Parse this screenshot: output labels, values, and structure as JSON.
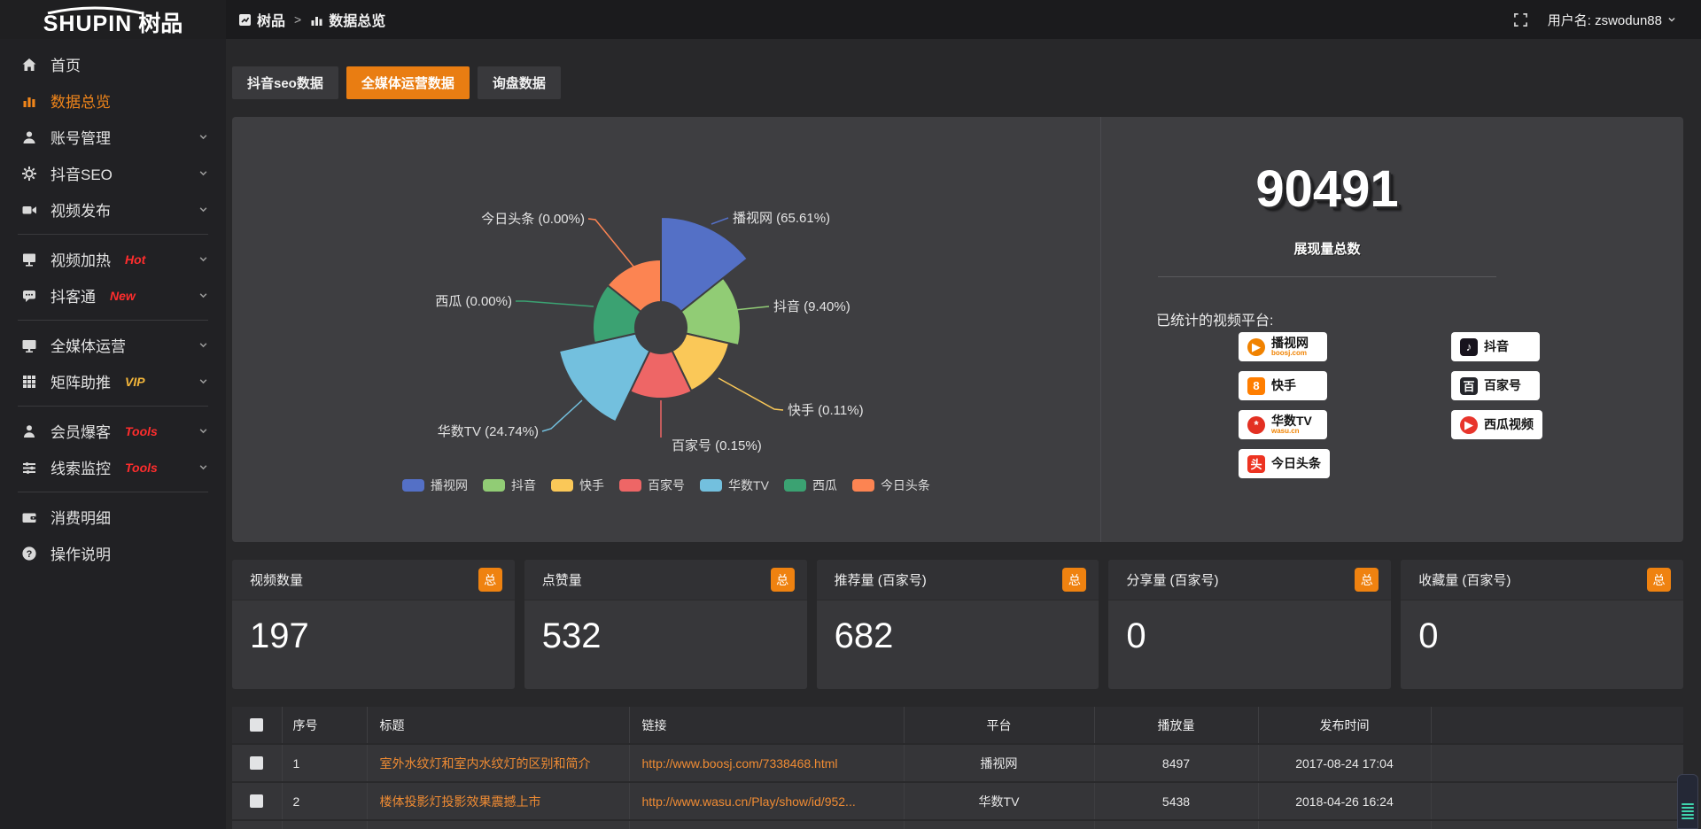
{
  "topbar": {
    "logo": {
      "text": "SHUPIN",
      "suffix": "树品"
    },
    "breadcrumb": {
      "root": "树品",
      "separator": ">",
      "current": "数据总览"
    },
    "username": "用户名: zswodun88"
  },
  "sidebar": {
    "items": [
      {
        "label": "首页",
        "icon": "home-icon",
        "active": false,
        "chevron": false,
        "badge": "",
        "badge_color": "",
        "divider_after": false
      },
      {
        "label": "数据总览",
        "icon": "bar-chart-icon",
        "active": true,
        "chevron": false,
        "badge": "",
        "badge_color": "",
        "divider_after": false
      },
      {
        "label": "账号管理",
        "icon": "user-icon",
        "active": false,
        "chevron": true,
        "badge": "",
        "badge_color": "",
        "divider_after": false
      },
      {
        "label": "抖音SEO",
        "icon": "gear-icon",
        "active": false,
        "chevron": true,
        "badge": "",
        "badge_color": "",
        "divider_after": false
      },
      {
        "label": "视频发布",
        "icon": "video-camera-icon",
        "active": false,
        "chevron": true,
        "badge": "",
        "badge_color": "",
        "divider_after": true
      },
      {
        "label": "视频加热",
        "icon": "screen-icon",
        "active": false,
        "chevron": true,
        "badge": "Hot",
        "badge_color": "#ff2d2d",
        "divider_after": false
      },
      {
        "label": "抖客通",
        "icon": "chat-icon",
        "active": false,
        "chevron": true,
        "badge": "New",
        "badge_color": "#ff2d2d",
        "divider_after": true
      },
      {
        "label": "全媒体运营",
        "icon": "monitor-icon",
        "active": false,
        "chevron": true,
        "badge": "",
        "badge_color": "",
        "divider_after": false
      },
      {
        "label": "矩阵助推",
        "icon": "grid-icon",
        "active": false,
        "chevron": true,
        "badge": "VIP",
        "badge_color": "#f3b63a",
        "divider_after": true
      },
      {
        "label": "会员爆客",
        "icon": "member-icon",
        "active": false,
        "chevron": true,
        "badge": "Tools",
        "badge_color": "#ff2d2d",
        "divider_after": false
      },
      {
        "label": "线索监控",
        "icon": "sliders-icon",
        "active": false,
        "chevron": true,
        "badge": "Tools",
        "badge_color": "#ff2d2d",
        "divider_after": true
      },
      {
        "label": "消费明细",
        "icon": "wallet-icon",
        "active": false,
        "chevron": false,
        "badge": "",
        "badge_color": "",
        "divider_after": false
      },
      {
        "label": "操作说明",
        "icon": "question-icon",
        "active": false,
        "chevron": false,
        "badge": "",
        "badge_color": "",
        "divider_after": false
      }
    ]
  },
  "tabs": [
    {
      "label": "抖音seo数据",
      "active": false
    },
    {
      "label": "全媒体运营数据",
      "active": true
    },
    {
      "label": "询盘数据",
      "active": false
    }
  ],
  "chart_data": {
    "type": "pie",
    "rose": true,
    "title": "",
    "legend_position": "bottom",
    "items": [
      {
        "name": "播视网",
        "value": 65.61,
        "label": "播视网 (65.61%)",
        "color": "#5470c6"
      },
      {
        "name": "抖音",
        "value": 9.4,
        "label": "抖音 (9.40%)",
        "color": "#91cc75"
      },
      {
        "name": "快手",
        "value": 0.11,
        "label": "快手 (0.11%)",
        "color": "#fac858"
      },
      {
        "name": "百家号",
        "value": 0.15,
        "label": "百家号 (0.15%)",
        "color": "#ee6666"
      },
      {
        "name": "华数TV",
        "value": 24.74,
        "label": "华数TV (24.74%)",
        "color": "#73c0de"
      },
      {
        "name": "西瓜",
        "value": 0.0,
        "label": "西瓜 (0.00%)",
        "color": "#3ba272"
      },
      {
        "name": "今日头条",
        "value": 0.0,
        "label": "今日头条 (0.00%)",
        "color": "#fc8452"
      }
    ]
  },
  "summary": {
    "total_value": "90491",
    "total_label": "展现量总数",
    "platforms_label": "已统计的视频平台:",
    "platforms": [
      {
        "name": "播视网",
        "sub": "boosj.com",
        "logo": "boosj-logo",
        "logo_color": "#f08200"
      },
      {
        "name": "抖音",
        "sub": "",
        "logo": "douyin-logo",
        "logo_color": "#17131d"
      },
      {
        "name": "快手",
        "sub": "",
        "logo": "kuaishou-logo",
        "logo_color": "#ff7e00"
      },
      {
        "name": "百家号",
        "sub": "",
        "logo": "baijiahao-logo",
        "logo_color": "#24252b"
      },
      {
        "name": "华数TV",
        "sub": "wasu.cn",
        "logo": "wasu-logo",
        "logo_color": "#e33022"
      },
      {
        "name": "西瓜视频",
        "sub": "",
        "logo": "xigua-logo",
        "logo_color": "#e8352c"
      },
      {
        "name": "今日头条",
        "sub": "",
        "logo": "toutiao-logo",
        "logo_color": "#ed3321"
      }
    ]
  },
  "stat_cards": [
    {
      "title": "视频数量",
      "badge": "总",
      "value": "197"
    },
    {
      "title": "点赞量",
      "badge": "总",
      "value": "532"
    },
    {
      "title": "推荐量 (百家号)",
      "badge": "总",
      "value": "682"
    },
    {
      "title": "分享量 (百家号)",
      "badge": "总",
      "value": "0"
    },
    {
      "title": "收藏量 (百家号)",
      "badge": "总",
      "value": "0"
    }
  ],
  "table": {
    "headers": [
      "序号",
      "标题",
      "链接",
      "平台",
      "播放量",
      "发布时间"
    ],
    "rows": [
      {
        "no": "1",
        "title": "室外水纹灯和室内水纹灯的区别和简介",
        "link": "http://www.boosj.com/7338468.html",
        "platform": "播视网",
        "plays": "8497",
        "time": "2017-08-24 17:04"
      },
      {
        "no": "2",
        "title": "楼体投影灯投影效果震撼上市",
        "link": "http://www.wasu.cn/Play/show/id/952...",
        "platform": "华数TV",
        "plays": "5438",
        "time": "2018-04-26 16:24"
      }
    ]
  },
  "colors": {
    "accent": "#ed7d11",
    "link": "#ef8b33"
  }
}
